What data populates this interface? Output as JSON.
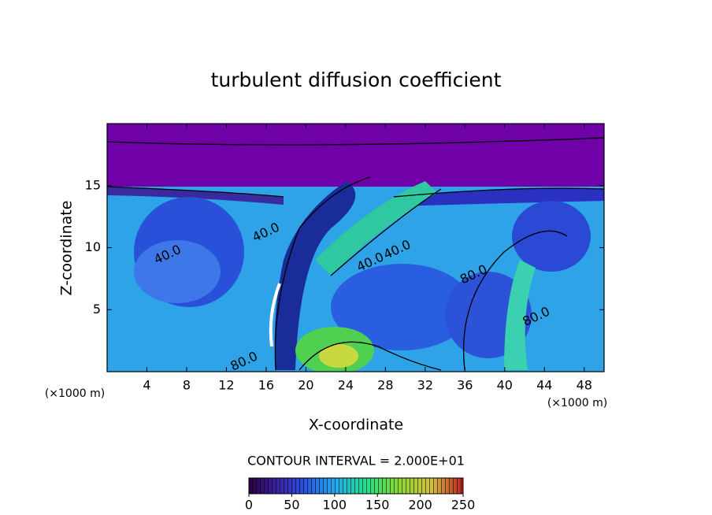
{
  "chart_data": {
    "type": "contour",
    "title": "turbulent diffusion coefficient",
    "x_label": "X-coordinate",
    "y_label": "Z-coordinate",
    "x_unit": "(×1000 m)",
    "xlim": [
      0,
      50
    ],
    "xticks": [
      4,
      8,
      12,
      16,
      20,
      24,
      28,
      32,
      36,
      40,
      44,
      48
    ],
    "ylim": [
      0,
      20
    ],
    "yticks": [
      5,
      10,
      15
    ],
    "contour_interval": "CONTOUR INTERVAL = 2.000E+01",
    "colorbar": {
      "clim": [
        0,
        250
      ],
      "ticks": [
        0,
        50,
        100,
        150,
        200,
        250
      ]
    },
    "annotations": [
      {
        "text": "40.0",
        "x": 6.1,
        "y": 9.4
      },
      {
        "text": "40.0",
        "x": 26.5,
        "y": 8.8
      },
      {
        "text": "40.0",
        "x": 29.2,
        "y": 9.8
      },
      {
        "text": "80.0",
        "x": 36.9,
        "y": 7.8
      },
      {
        "text": "80.0",
        "x": 13.8,
        "y": 0.8
      },
      {
        "text": "40.0",
        "x": 16.0,
        "y": 11.2
      },
      {
        "text": "80.0",
        "x": 43.2,
        "y": 4.4
      }
    ]
  }
}
